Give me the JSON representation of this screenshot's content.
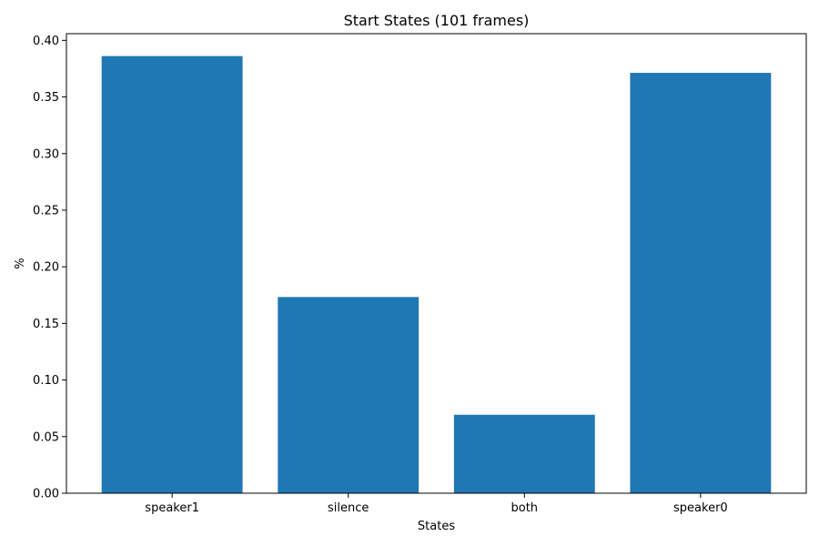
{
  "chart_data": {
    "type": "bar",
    "title": "Start States (101 frames)",
    "xlabel": "States",
    "ylabel": "%",
    "categories": [
      "speaker1",
      "silence",
      "both",
      "speaker0"
    ],
    "values": [
      0.3861,
      0.1733,
      0.0693,
      0.3713
    ],
    "ylim": [
      0,
      0.4059
    ],
    "yticks": [
      0.0,
      0.05,
      0.1,
      0.15,
      0.2,
      0.25,
      0.3,
      0.35,
      0.4
    ],
    "ytick_labels": [
      "0.00",
      "0.05",
      "0.10",
      "0.15",
      "0.20",
      "0.25",
      "0.30",
      "0.35",
      "0.40"
    ],
    "bar_color": "#1f77b4",
    "grid": false,
    "legend": "none"
  }
}
